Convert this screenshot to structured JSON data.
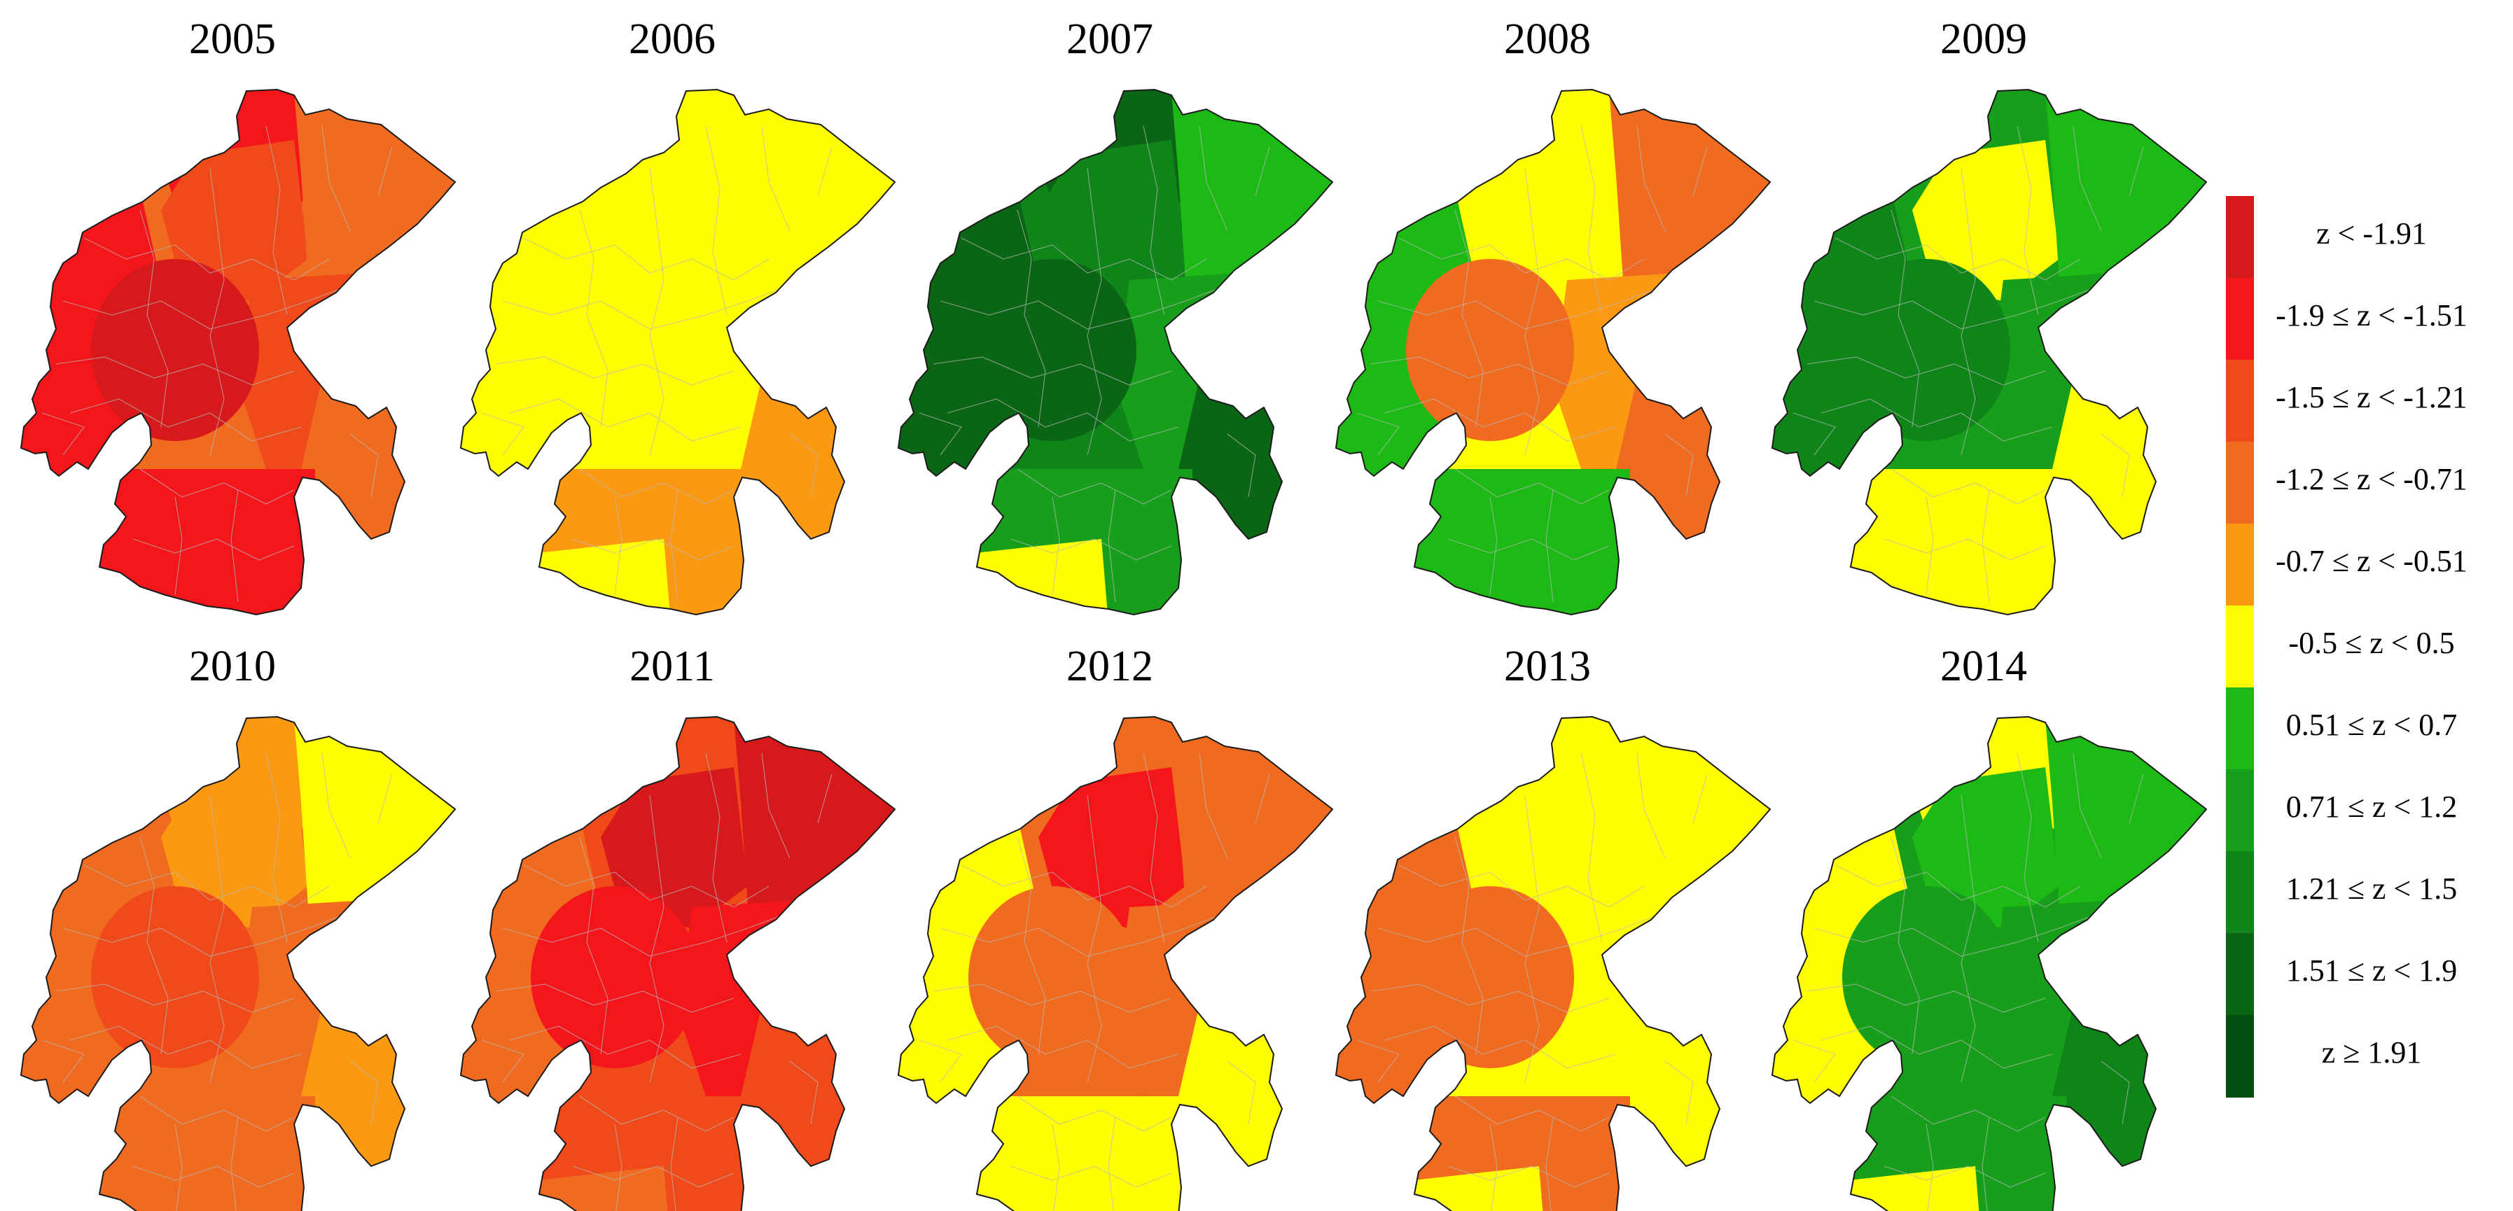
{
  "maps": [
    {
      "year": "2005",
      "regions": {
        "base": "r4",
        "nw": "r2",
        "north": "r3",
        "ne": "r4",
        "west": "r2",
        "center": "r1",
        "east": "r3",
        "se": "r4",
        "south": "r2",
        "sw": "r2"
      }
    },
    {
      "year": "2006",
      "regions": {
        "base": "r6",
        "nw": "r6",
        "north": "r6",
        "ne": "r6",
        "west": "r6",
        "center": "r6",
        "east": "r6",
        "se": "r5",
        "south": "r5",
        "sw": "r6"
      }
    },
    {
      "year": "2007",
      "regions": {
        "base": "r9",
        "nw": "r10",
        "north": "r9",
        "ne": "r7",
        "west": "r10",
        "center": "r10",
        "east": "r8",
        "se": "r10",
        "south": "r8",
        "sw": "r6"
      }
    },
    {
      "year": "2008",
      "regions": {
        "base": "r6",
        "nw": "r6",
        "north": "r6",
        "ne": "r4",
        "west": "r7",
        "center": "r4",
        "east": "r5",
        "se": "r4",
        "south": "r7",
        "sw": "r7"
      }
    },
    {
      "year": "2009",
      "regions": {
        "base": "r8",
        "nw": "r8",
        "north": "r6",
        "ne": "r7",
        "west": "r9",
        "center": "r9",
        "east": "r8",
        "se": "r6",
        "south": "r6",
        "sw": "r6"
      }
    },
    {
      "year": "2010",
      "regions": {
        "base": "r4",
        "nw": "r5",
        "north": "r5",
        "ne": "r6",
        "west": "r4",
        "center": "r3",
        "east": "r4",
        "se": "r5",
        "south": "r4",
        "sw": "r4"
      }
    },
    {
      "year": "2011",
      "regions": {
        "base": "r3",
        "nw": "r3",
        "north": "r1",
        "ne": "r1",
        "west": "r4",
        "center": "r2",
        "east": "r2",
        "se": "r3",
        "south": "r3",
        "sw": "r4"
      }
    },
    {
      "year": "2012",
      "regions": {
        "base": "r4",
        "nw": "r4",
        "north": "r2",
        "ne": "r4",
        "west": "r6",
        "center": "r4",
        "east": "r4",
        "se": "r6",
        "south": "r6",
        "sw": "r6"
      }
    },
    {
      "year": "2013",
      "regions": {
        "base": "r6",
        "nw": "r6",
        "north": "r6",
        "ne": "r6",
        "west": "r4",
        "center": "r4",
        "east": "r6",
        "se": "r6",
        "south": "r4",
        "sw": "r6"
      }
    },
    {
      "year": "2014",
      "regions": {
        "base": "r8",
        "nw": "r6",
        "north": "r7",
        "ne": "r7",
        "west": "r6",
        "center": "r8",
        "east": "r8",
        "se": "r9",
        "south": "r8",
        "sw": "r6"
      }
    }
  ],
  "legend": [
    {
      "id": "r1",
      "label": "z < -1.91",
      "color": "#d7191c"
    },
    {
      "id": "r2",
      "label": "-1.9 ≤ z < -1.51",
      "color": "#f5161c"
    },
    {
      "id": "r3",
      "label": "-1.5 ≤ z < -1.21",
      "color": "#f04a1a"
    },
    {
      "id": "r4",
      "label": "-1.2 ≤ z < -0.71",
      "color": "#f06a1f"
    },
    {
      "id": "r5",
      "label": "-0.7 ≤ z < -0.51",
      "color": "#fb9a12"
    },
    {
      "id": "r6",
      "label": "-0.5 ≤ z < 0.5",
      "color": "#ffff00"
    },
    {
      "id": "r7",
      "label": "0.51 ≤ z < 0.7",
      "color": "#1dba16"
    },
    {
      "id": "r8",
      "label": "0.71 ≤ z < 1.2",
      "color": "#179e1a"
    },
    {
      "id": "r9",
      "label": "1.21 ≤ z < 1.5",
      "color": "#0f8418"
    },
    {
      "id": "r10",
      "label": "1.51 ≤ z < 1.9",
      "color": "#0a6614"
    },
    {
      "id": "r11",
      "label": "z ≥ 1.91",
      "color": "#004d10"
    }
  ]
}
